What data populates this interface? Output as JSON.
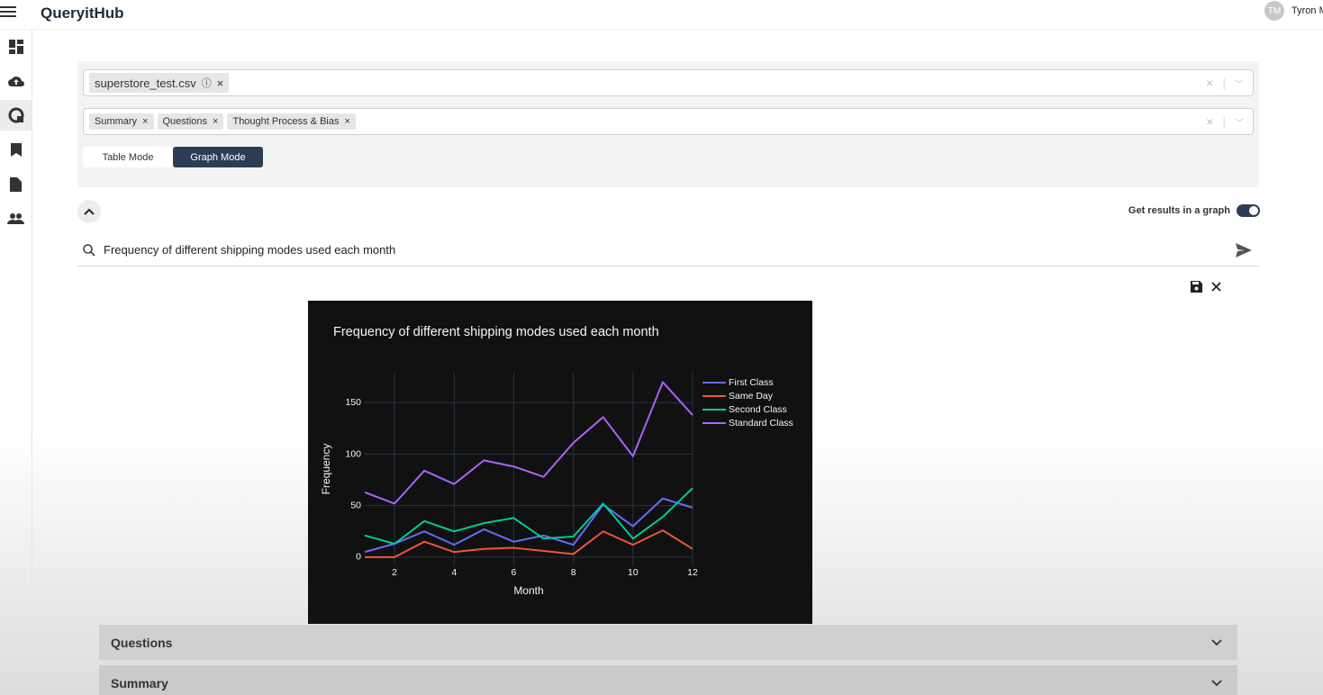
{
  "header": {
    "brand": "QueryitHub",
    "avatar": "TM",
    "user": "Tyron M"
  },
  "filters": {
    "file": "superstore_test.csv",
    "sections": [
      "Summary",
      "Questions",
      "Thought Process & Bias"
    ]
  },
  "modes": [
    "Table Mode",
    "Graph Mode"
  ],
  "toggle_label": "Get results in a graph",
  "query": "Frequency of different shipping modes used each month",
  "accordions": [
    "Questions",
    "Summary"
  ],
  "chart_data": {
    "type": "line",
    "title": "Frequency of different shipping modes used each month",
    "x_label": "Month",
    "y_label": "Frequency",
    "x": [
      1,
      2,
      3,
      4,
      5,
      6,
      7,
      8,
      9,
      10,
      11,
      12
    ],
    "series": [
      {
        "name": "First Class",
        "color": "#636efa",
        "values": [
          5,
          13,
          25,
          12,
          27,
          15,
          21,
          12,
          51,
          30,
          57,
          48
        ]
      },
      {
        "name": "Same Day",
        "color": "#ef553b",
        "values": [
          0,
          0,
          15,
          5,
          8,
          9,
          6,
          3,
          25,
          12,
          26,
          8
        ]
      },
      {
        "name": "Second Class",
        "color": "#00cc96",
        "values": [
          21,
          13,
          35,
          25,
          33,
          38,
          18,
          20,
          52,
          18,
          39,
          67
        ]
      },
      {
        "name": "Standard Class",
        "color": "#ab63fa",
        "values": [
          63,
          52,
          84,
          71,
          94,
          88,
          78,
          111,
          136,
          98,
          170,
          138
        ]
      }
    ],
    "xlim": [
      1,
      12
    ],
    "xticks": [
      2,
      4,
      6,
      8,
      10,
      12
    ],
    "ylim": [
      -8,
      180
    ],
    "yticks": [
      0,
      50,
      100,
      150
    ],
    "grid": true,
    "legend": "right"
  }
}
